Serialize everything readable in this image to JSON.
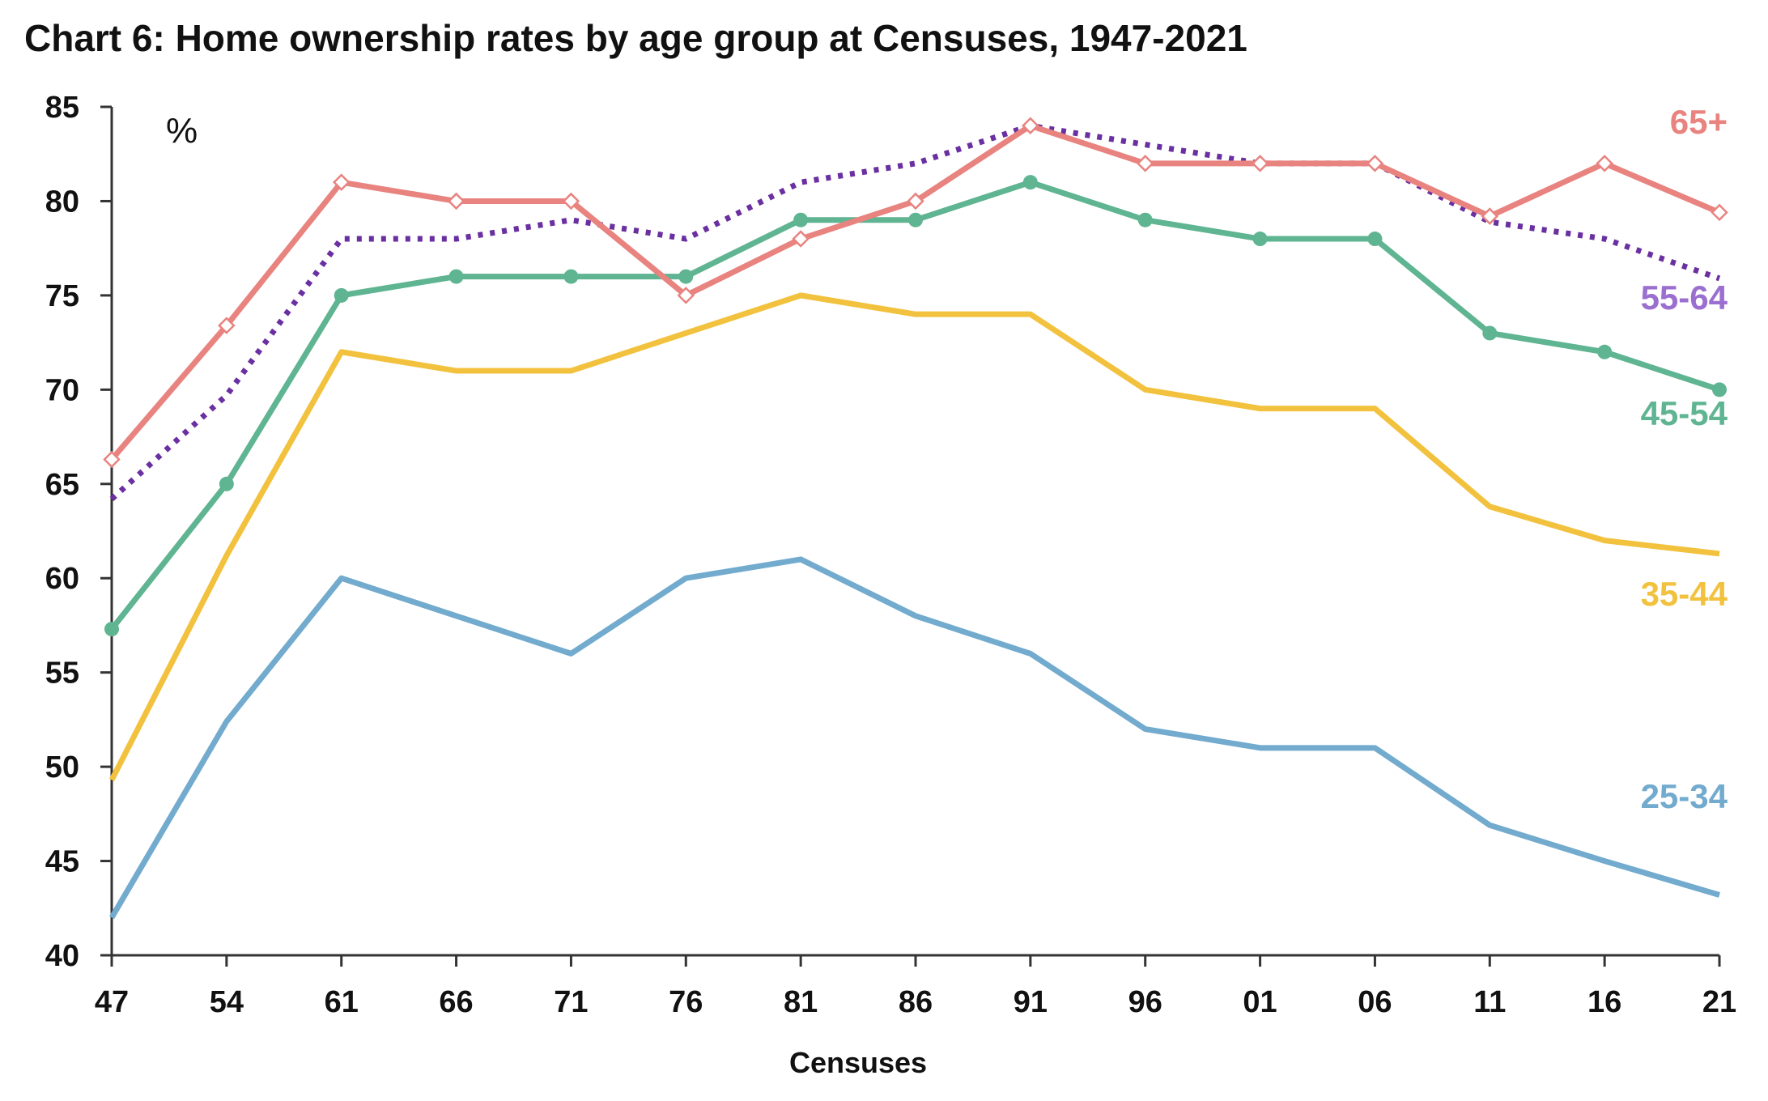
{
  "chart_data": {
    "type": "line",
    "title": "Chart 6: Home ownership rates by age group at Censuses, 1947-2021",
    "xlabel": "Censuses",
    "ylabel": "",
    "unit_label": "%",
    "ylim": [
      40,
      85
    ],
    "yticks": [
      40,
      45,
      50,
      55,
      60,
      65,
      70,
      75,
      80,
      85
    ],
    "categories": [
      "47",
      "54",
      "61",
      "66",
      "71",
      "76",
      "81",
      "86",
      "91",
      "96",
      "01",
      "06",
      "11",
      "16",
      "21"
    ],
    "grid": false,
    "legend": "inline labels at right end of each line",
    "series": [
      {
        "name": "65+",
        "color": "#E8837F",
        "style": "solid",
        "marker": "diamond-open",
        "values": [
          66.3,
          73.4,
          81,
          80,
          80,
          75,
          78,
          80,
          84,
          82,
          82,
          82,
          79.2,
          82,
          79.4
        ]
      },
      {
        "name": "55-64",
        "color": "#6A2FA0",
        "label_color": "#9B6FD0",
        "style": "dotted",
        "marker": "none",
        "values": [
          64.2,
          69.7,
          78,
          78,
          79,
          78,
          81,
          82,
          84,
          83,
          82,
          82,
          78.9,
          78,
          75.9
        ]
      },
      {
        "name": "45-54",
        "color": "#5FB492",
        "style": "solid",
        "marker": "circle",
        "values": [
          57.3,
          65,
          75,
          76,
          76,
          76,
          79,
          79,
          81,
          79,
          78,
          78,
          73,
          72,
          70
        ]
      },
      {
        "name": "35-44",
        "color": "#F2C23E",
        "style": "solid",
        "marker": "none",
        "values": [
          49.3,
          61.2,
          72,
          71,
          71,
          73,
          75,
          74,
          74,
          70,
          69,
          69,
          63.8,
          62,
          61.3
        ]
      },
      {
        "name": "25-34",
        "color": "#72ABCE",
        "style": "solid",
        "marker": "none",
        "values": [
          42,
          52.4,
          60,
          58,
          56,
          60,
          61,
          58,
          56,
          52,
          51,
          51,
          46.9,
          45,
          43.2
        ]
      }
    ]
  }
}
